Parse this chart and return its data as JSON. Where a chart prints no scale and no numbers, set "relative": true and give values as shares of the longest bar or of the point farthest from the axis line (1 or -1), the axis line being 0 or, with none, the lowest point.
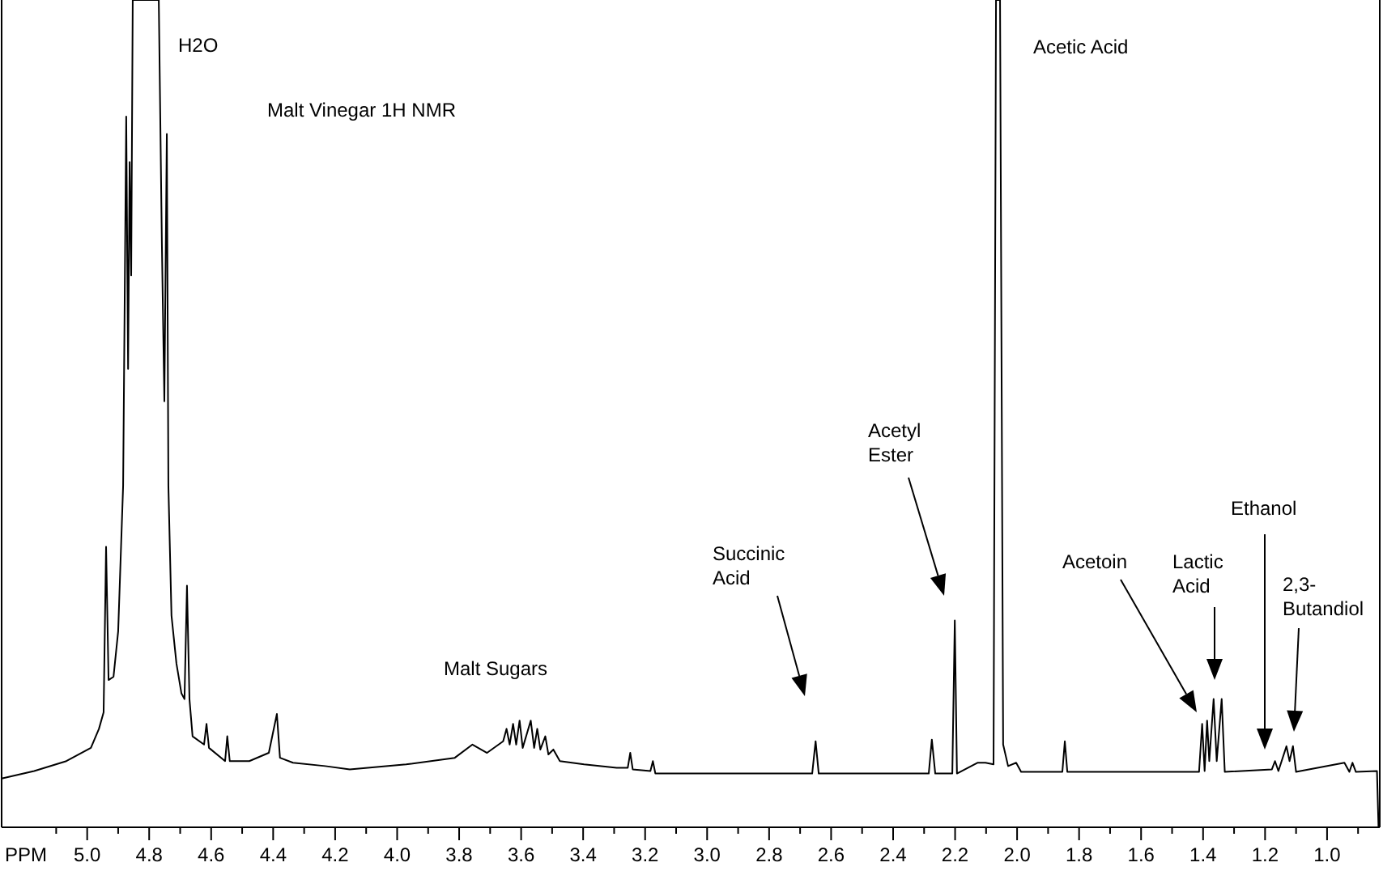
{
  "chart_data": {
    "type": "line",
    "title": "Malt Vinegar 1H NMR",
    "xlabel": "PPM",
    "relative": true,
    "xlim": [
      5.276,
      0.83
    ],
    "xticks": [
      {
        "value": 5.1,
        "label": null
      },
      {
        "value": 5.0,
        "label": "5.0"
      },
      {
        "value": 4.9,
        "label": null
      },
      {
        "value": 4.8,
        "label": "4.8"
      },
      {
        "value": 4.7,
        "label": null
      },
      {
        "value": 4.6,
        "label": "4.6"
      },
      {
        "value": 4.5,
        "label": null
      },
      {
        "value": 4.4,
        "label": "4.4"
      },
      {
        "value": 4.3,
        "label": null
      },
      {
        "value": 4.2,
        "label": "4.2"
      },
      {
        "value": 4.1,
        "label": null
      },
      {
        "value": 4.0,
        "label": "4.0"
      },
      {
        "value": 3.9,
        "label": null
      },
      {
        "value": 3.8,
        "label": "3.8"
      },
      {
        "value": 3.7,
        "label": null
      },
      {
        "value": 3.6,
        "label": "3.6"
      },
      {
        "value": 3.5,
        "label": null
      },
      {
        "value": 3.4,
        "label": "3.4"
      },
      {
        "value": 3.3,
        "label": null
      },
      {
        "value": 3.2,
        "label": "3.2"
      },
      {
        "value": 3.1,
        "label": null
      },
      {
        "value": 3.0,
        "label": "3.0"
      },
      {
        "value": 2.9,
        "label": null
      },
      {
        "value": 2.8,
        "label": "2.8"
      },
      {
        "value": 2.7,
        "label": null
      },
      {
        "value": 2.6,
        "label": "2.6"
      },
      {
        "value": 2.5,
        "label": null
      },
      {
        "value": 2.4,
        "label": "2.4"
      },
      {
        "value": 2.3,
        "label": null
      },
      {
        "value": 2.2,
        "label": "2.2"
      },
      {
        "value": 2.1,
        "label": null
      },
      {
        "value": 2.0,
        "label": "2.0"
      },
      {
        "value": 1.9,
        "label": null
      },
      {
        "value": 1.8,
        "label": "1.8"
      },
      {
        "value": 1.7,
        "label": null
      },
      {
        "value": 1.6,
        "label": "1.6"
      },
      {
        "value": 1.5,
        "label": null
      },
      {
        "value": 1.4,
        "label": "1.4"
      },
      {
        "value": 1.3,
        "label": null
      },
      {
        "value": 1.2,
        "label": "1.2"
      },
      {
        "value": 1.1,
        "label": null
      },
      {
        "value": 1.0,
        "label": "1.0"
      },
      {
        "value": 0.9,
        "label": null
      }
    ],
    "series": [
      {
        "color": "#000000",
        "x": [
          5.276,
          5.171,
          5.067,
          4.988,
          4.962,
          4.947,
          4.939,
          4.931,
          4.915,
          4.9,
          4.884,
          4.874,
          4.868,
          4.863,
          4.858,
          4.853,
          4.769,
          4.759,
          4.751,
          4.743,
          4.738,
          4.728,
          4.712,
          4.696,
          4.686,
          4.678,
          4.67,
          4.66,
          4.623,
          4.615,
          4.607,
          4.555,
          4.548,
          4.54,
          4.477,
          4.414,
          4.388,
          4.378,
          4.336,
          4.232,
          4.153,
          3.971,
          3.814,
          3.757,
          3.71,
          3.658,
          3.647,
          3.637,
          3.626,
          3.616,
          3.605,
          3.595,
          3.569,
          3.558,
          3.548,
          3.538,
          3.522,
          3.512,
          3.496,
          3.475,
          3.397,
          3.292,
          3.256,
          3.248,
          3.24,
          3.183,
          3.175,
          3.167,
          2.927,
          2.661,
          2.65,
          2.64,
          2.285,
          2.275,
          2.264,
          2.209,
          2.201,
          2.194,
          2.128,
          2.102,
          2.076,
          2.068,
          2.055,
          2.045,
          2.029,
          2.003,
          1.987,
          1.854,
          1.846,
          1.838,
          1.413,
          1.403,
          1.395,
          1.387,
          1.38,
          1.366,
          1.356,
          1.34,
          1.33,
          1.178,
          1.168,
          1.157,
          1.131,
          1.121,
          1.11,
          1.1,
          0.944,
          0.928,
          0.918,
          0.907,
          0.839,
          0.834
        ],
        "values": [
          0.059,
          0.068,
          0.08,
          0.096,
          0.119,
          0.139,
          0.339,
          0.178,
          0.182,
          0.237,
          0.413,
          0.859,
          0.554,
          0.804,
          0.667,
          1,
          1,
          0.706,
          0.515,
          0.838,
          0.413,
          0.256,
          0.198,
          0.162,
          0.155,
          0.292,
          0.155,
          0.11,
          0.1,
          0.125,
          0.096,
          0.08,
          0.11,
          0.08,
          0.08,
          0.09,
          0.137,
          0.084,
          0.078,
          0.074,
          0.07,
          0.076,
          0.084,
          0.1,
          0.09,
          0.104,
          0.119,
          0.1,
          0.125,
          0.1,
          0.129,
          0.096,
          0.129,
          0.096,
          0.119,
          0.094,
          0.11,
          0.088,
          0.094,
          0.08,
          0.076,
          0.072,
          0.072,
          0.09,
          0.07,
          0.068,
          0.08,
          0.065,
          0.065,
          0.065,
          0.104,
          0.065,
          0.065,
          0.106,
          0.065,
          0.065,
          0.25,
          0.065,
          0.078,
          0.078,
          0.076,
          1,
          1,
          0.1,
          0.074,
          0.078,
          0.067,
          0.067,
          0.104,
          0.067,
          0.067,
          0.125,
          0.068,
          0.129,
          0.08,
          0.155,
          0.08,
          0.155,
          0.067,
          0.07,
          0.08,
          0.068,
          0.098,
          0.08,
          0.098,
          0.067,
          0.078,
          0.067,
          0.078,
          0.067,
          0.068,
          0
        ]
      }
    ],
    "annotations": [
      "H2O",
      "Acetic Acid",
      "Malt Sugars",
      "Succinic Acid",
      "Acetyl Ester",
      "Acetoin",
      "Lactic Acid",
      "Ethanol",
      "2,3-Butandiol"
    ]
  }
}
